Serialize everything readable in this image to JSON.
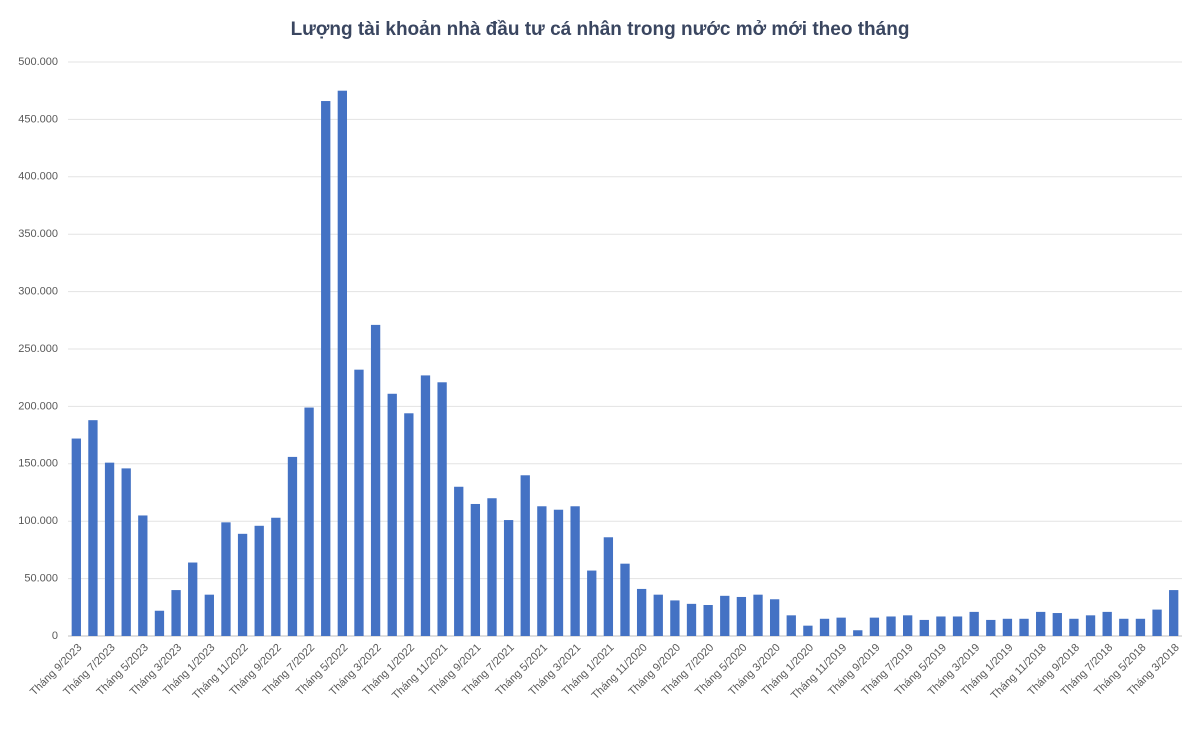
{
  "chart_data": {
    "type": "bar",
    "title": "Lượng tài khoản nhà đầu tư cá nhân trong nước mở mới theo tháng",
    "categories": [
      "Tháng 9/2023",
      null,
      "Tháng 7/2023",
      null,
      "Tháng 5/2023",
      null,
      "Tháng 3/2023",
      null,
      "Tháng 1/2023",
      null,
      "Tháng 11/2022",
      null,
      "Tháng 9/2022",
      null,
      "Tháng 7/2022",
      null,
      "Tháng 5/2022",
      null,
      "Tháng 3/2022",
      null,
      "Tháng 1/2022",
      null,
      "Tháng 11/2021",
      null,
      "Tháng 9/2021",
      null,
      "Tháng 7/2021",
      null,
      "Tháng 5/2021",
      null,
      "Tháng 3/2021",
      null,
      "Tháng 1/2021",
      null,
      "Tháng 11/2020",
      null,
      "Tháng 9/2020",
      null,
      "Tháng 7/2020",
      null,
      "Tháng 5/2020",
      null,
      "Tháng 3/2020",
      null,
      "Tháng 1/2020",
      null,
      "Tháng 11/2019",
      null,
      "Tháng 9/2019",
      null,
      "Tháng 7/2019",
      null,
      "Tháng 5/2019",
      null,
      "Tháng 3/2019",
      null,
      "Tháng 1/2019",
      null,
      "Tháng 11/2018",
      null,
      "Tháng 9/2018",
      null,
      "Tháng 7/2018",
      null,
      "Tháng 5/2018",
      null,
      "Tháng 3/2018"
    ],
    "values": [
      172000,
      188000,
      151000,
      146000,
      105000,
      22000,
      40000,
      64000,
      36000,
      99000,
      89000,
      96000,
      103000,
      156000,
      199000,
      466000,
      475000,
      232000,
      271000,
      211000,
      194000,
      227000,
      221000,
      130000,
      115000,
      120000,
      101000,
      140000,
      113000,
      110000,
      113000,
      57000,
      86000,
      63000,
      41000,
      36000,
      31000,
      28000,
      27000,
      35000,
      34000,
      36000,
      32000,
      18000,
      9000,
      15000,
      16000,
      5000,
      16000,
      17000,
      18000,
      14000,
      17000,
      17000,
      21000,
      14000,
      15000,
      15000,
      21000,
      20000,
      15000,
      18000,
      21000,
      15000,
      15000,
      23000,
      40000
    ],
    "color": "#4472c4",
    "ylim": [
      0,
      500000
    ],
    "yticks": [
      0,
      {
        "value": 50000,
        "label": "50.000"
      },
      {
        "value": 100000,
        "label": "100.000"
      },
      {
        "value": 150000,
        "label": "150.000"
      },
      {
        "value": 200000,
        "label": "200.000"
      },
      {
        "value": 250000,
        "label": "250.000"
      },
      {
        "value": 300000,
        "label": "300.000"
      },
      {
        "value": 350000,
        "label": "350.000"
      },
      {
        "value": 400000,
        "label": "400.000"
      },
      {
        "value": 450000,
        "label": "450.000"
      },
      {
        "value": 500000,
        "label": "500.000"
      }
    ],
    "grid": true
  }
}
